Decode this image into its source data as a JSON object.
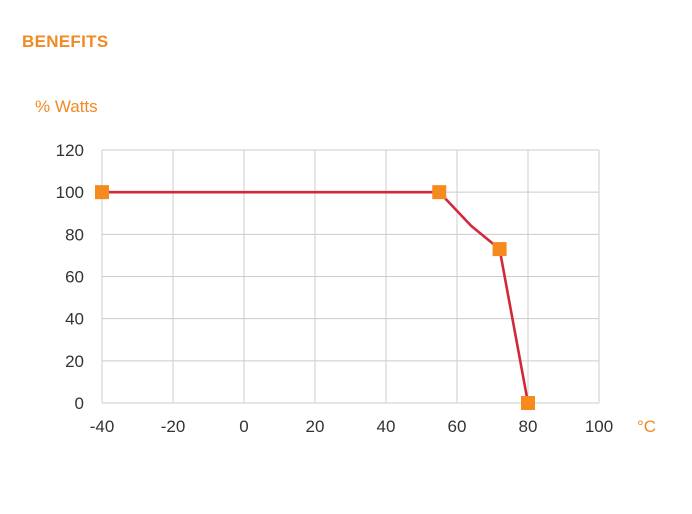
{
  "page": {
    "heading": "BENEFITS"
  },
  "colors": {
    "accent": "#F18A25",
    "line": "#D3273A",
    "grid": "#CCCCCC",
    "marker": "#F58A1F",
    "tick_text": "#333333"
  },
  "chart_data": {
    "type": "line",
    "ylabel": "% Watts",
    "xlabel": "°C",
    "xlim": [
      -40,
      100
    ],
    "ylim": [
      0,
      120
    ],
    "x_ticks": [
      "-40",
      "-20",
      "0",
      "20",
      "40",
      "60",
      "80",
      "100"
    ],
    "y_ticks": [
      "120",
      "100",
      "80",
      "60",
      "40",
      "20",
      "0"
    ],
    "grid": true,
    "series": [
      {
        "line_points": [
          {
            "x": -40,
            "y": 100
          },
          {
            "x": 55,
            "y": 100
          },
          {
            "x": 64,
            "y": 84
          },
          {
            "x": 72,
            "y": 73
          },
          {
            "x": 80,
            "y": 0
          }
        ],
        "markers": [
          {
            "x": -40,
            "y": 100
          },
          {
            "x": 55,
            "y": 100
          },
          {
            "x": 72,
            "y": 73
          },
          {
            "x": 80,
            "y": 0
          }
        ]
      }
    ]
  }
}
